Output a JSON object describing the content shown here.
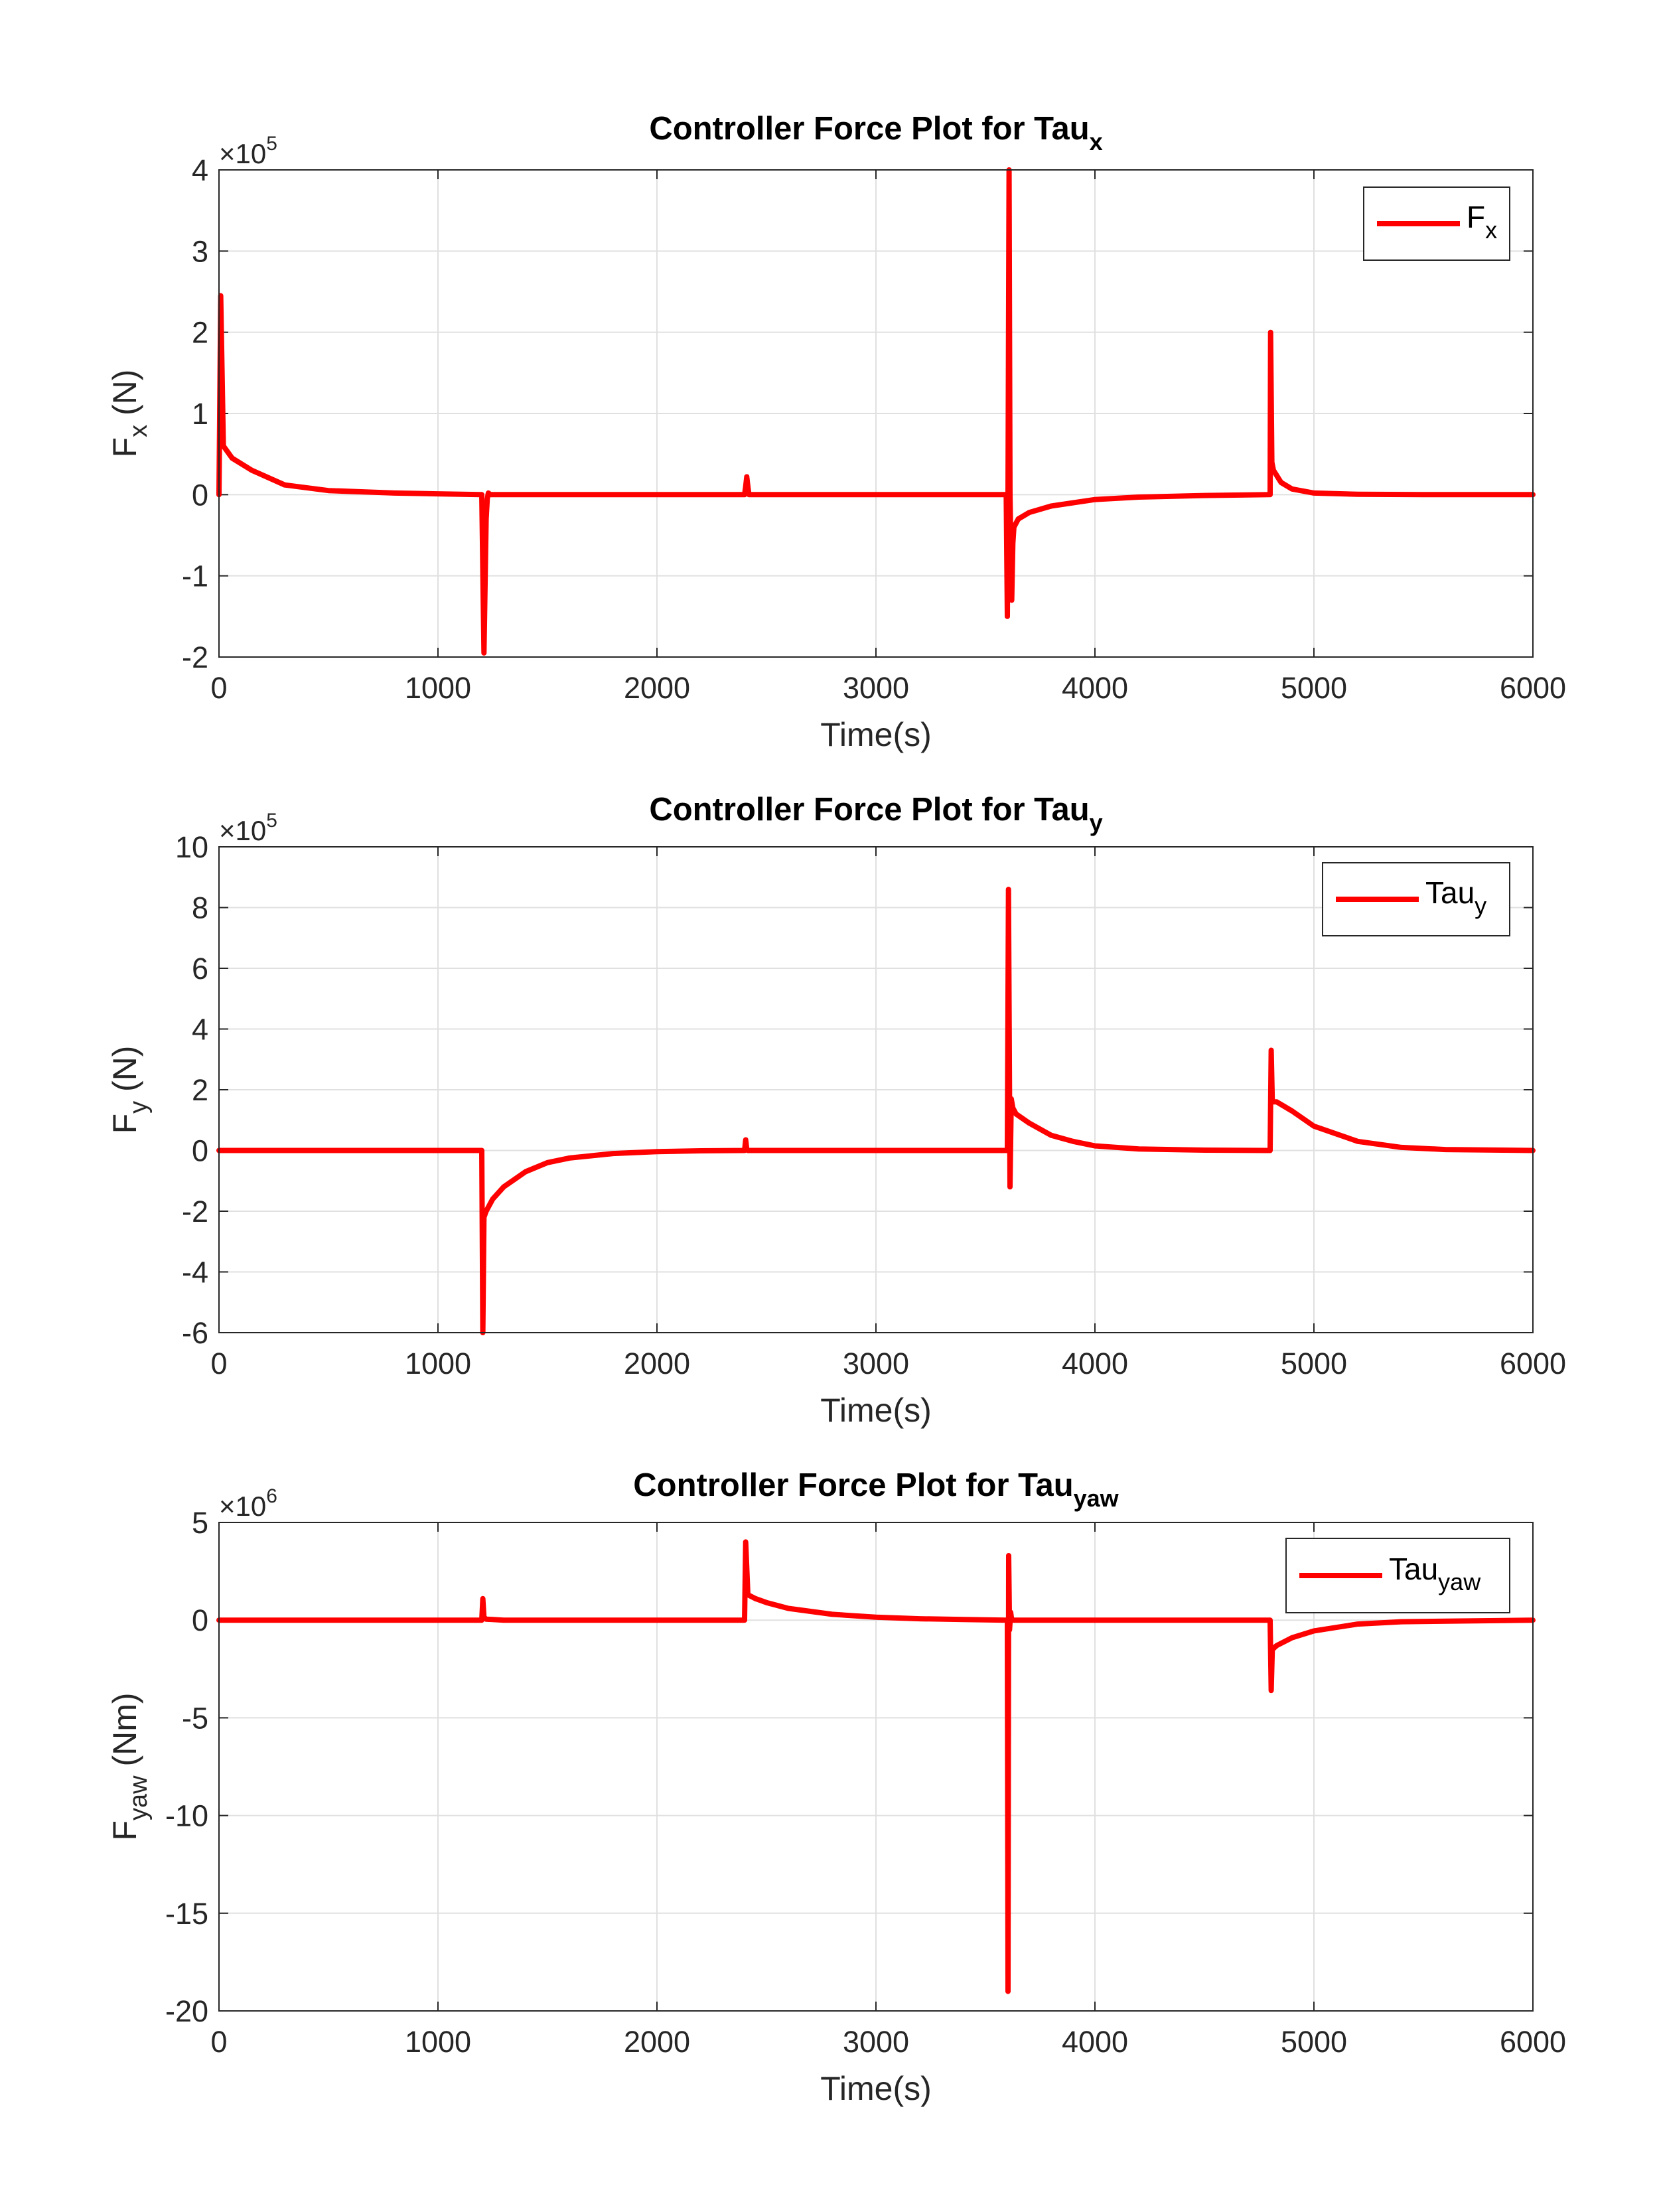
{
  "chart_data": [
    {
      "type": "line",
      "title": "Controller Force Plot for Tau",
      "title_subscript": "x",
      "xlabel": "Time(s)",
      "ylabel": "F",
      "ylabel_subscript": "x",
      "ylabel_unit": " (N)",
      "exponent_base": "×10",
      "exponent_power": "5",
      "xlim": [
        0,
        6000
      ],
      "ylim": [
        -2,
        4
      ],
      "xticks": [
        0,
        1000,
        2000,
        3000,
        4000,
        5000,
        6000
      ],
      "yticks": [
        -2,
        -1,
        0,
        1,
        2,
        3,
        4
      ],
      "grid": true,
      "legend_position": "top-right",
      "series": [
        {
          "name": "F",
          "name_subscript": "x",
          "color": "#ff0000",
          "x": [
            0,
            8,
            20,
            60,
            150,
            300,
            500,
            800,
            1000,
            1195,
            1200,
            1210,
            1220,
            1225,
            1230,
            1240,
            1250,
            1300,
            2000,
            2400,
            2405,
            2410,
            2415,
            2420,
            2430,
            2500,
            3000,
            3595,
            3600,
            3603,
            3608,
            3612,
            3620,
            3625,
            3630,
            3650,
            3700,
            3800,
            4000,
            4200,
            4500,
            4795,
            4800,
            4802,
            4808,
            4815,
            4850,
            4900,
            5000,
            5200,
            5500,
            6000
          ],
          "y": [
            0,
            2.45,
            0.6,
            0.45,
            0.3,
            0.12,
            0.05,
            0.02,
            0.01,
            0,
            0,
            -1.95,
            -0.3,
            -0.05,
            0.02,
            0,
            0,
            0,
            0,
            0,
            0.1,
            0.22,
            0.1,
            0,
            0,
            0,
            0,
            0,
            -1.5,
            0,
            4.0,
            0,
            -1.3,
            -0.6,
            -0.4,
            -0.3,
            -0.22,
            -0.14,
            -0.06,
            -0.03,
            -0.01,
            0,
            0,
            2.0,
            0.4,
            0.3,
            0.15,
            0.07,
            0.02,
            0.005,
            0,
            0
          ]
        }
      ]
    },
    {
      "type": "line",
      "title": "Controller Force Plot for Tau",
      "title_subscript": "y",
      "xlabel": "Time(s)",
      "ylabel": "F",
      "ylabel_subscript": "y",
      "ylabel_unit": " (N)",
      "exponent_base": "×10",
      "exponent_power": "5",
      "xlim": [
        0,
        6000
      ],
      "ylim": [
        -6,
        10
      ],
      "xticks": [
        0,
        1000,
        2000,
        3000,
        4000,
        5000,
        6000
      ],
      "yticks": [
        -6,
        -4,
        -2,
        0,
        2,
        4,
        6,
        8,
        10
      ],
      "grid": true,
      "legend_position": "top-right",
      "series": [
        {
          "name": "Tau",
          "name_subscript": "y",
          "color": "#ff0000",
          "x": [
            0,
            1195,
            1200,
            1205,
            1210,
            1220,
            1250,
            1300,
            1400,
            1500,
            1600,
            1800,
            2000,
            2200,
            2400,
            2405,
            2410,
            2415,
            2420,
            2500,
            3000,
            3595,
            3600,
            3605,
            3612,
            3618,
            3625,
            3640,
            3700,
            3800,
            3900,
            4000,
            4200,
            4500,
            4795,
            4800,
            4805,
            4810,
            4830,
            4900,
            5000,
            5200,
            5400,
            5600,
            6000
          ],
          "y": [
            0,
            0,
            0,
            -6.0,
            -2.2,
            -2.0,
            -1.6,
            -1.2,
            -0.7,
            -0.4,
            -0.25,
            -0.1,
            -0.04,
            -0.01,
            0,
            0.35,
            0.05,
            0,
            0,
            0,
            0,
            0,
            0,
            8.6,
            -1.2,
            1.7,
            1.4,
            1.2,
            0.9,
            0.5,
            0.3,
            0.15,
            0.05,
            0.01,
            0,
            0,
            3.3,
            1.6,
            1.6,
            1.3,
            0.8,
            0.3,
            0.1,
            0.03,
            0
          ]
        }
      ]
    },
    {
      "type": "line",
      "title": "Controller Force Plot for Tau",
      "title_subscript": "yaw",
      "xlabel": "Time(s)",
      "ylabel": "F",
      "ylabel_subscript": "yaw",
      "ylabel_unit": " (Nm)",
      "exponent_base": "×10",
      "exponent_power": "6",
      "xlim": [
        0,
        6000
      ],
      "ylim": [
        -20,
        5
      ],
      "xticks": [
        0,
        1000,
        2000,
        3000,
        4000,
        5000,
        6000
      ],
      "yticks": [
        -20,
        -15,
        -10,
        -5,
        0,
        5
      ],
      "grid": true,
      "legend_position": "top-right",
      "series": [
        {
          "name": "Tau",
          "name_subscript": "yaw",
          "color": "#ff0000",
          "x": [
            0,
            1195,
            1200,
            1205,
            1210,
            1220,
            1250,
            1300,
            2000,
            2395,
            2400,
            2405,
            2415,
            2450,
            2500,
            2600,
            2800,
            3000,
            3200,
            3400,
            3595,
            3600,
            3603,
            3606,
            3610,
            3615,
            3620,
            3640,
            3700,
            4000,
            4500,
            4795,
            4800,
            4805,
            4810,
            4830,
            4900,
            5000,
            5200,
            5400,
            6000
          ],
          "y": [
            0,
            0,
            0,
            1.1,
            0.15,
            0.05,
            0.03,
            0,
            0,
            0,
            0,
            4.0,
            1.3,
            1.1,
            0.9,
            0.6,
            0.3,
            0.15,
            0.07,
            0.03,
            0,
            0,
            -19.0,
            3.3,
            -0.5,
            0.4,
            0,
            0,
            0,
            0,
            0,
            0,
            0,
            -3.6,
            -1.5,
            -1.3,
            -0.9,
            -0.55,
            -0.2,
            -0.08,
            0
          ]
        }
      ]
    }
  ]
}
